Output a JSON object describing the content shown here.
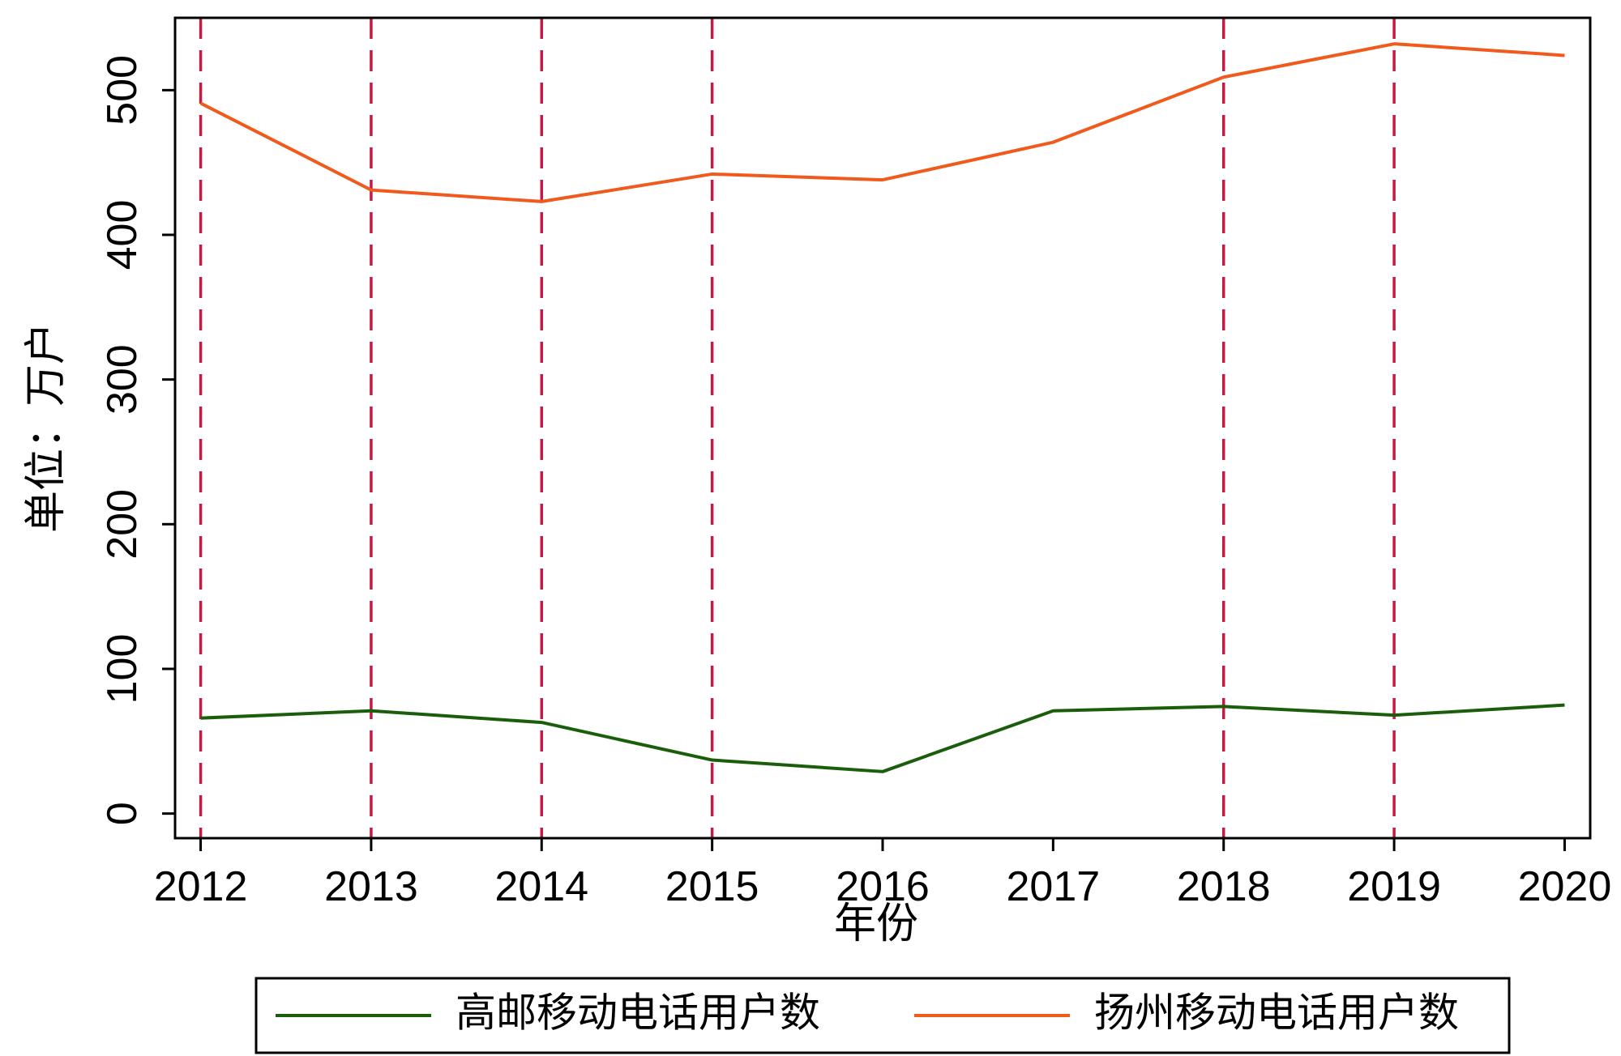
{
  "chart_data": {
    "type": "line",
    "title": "",
    "xlabel": "年份",
    "ylabel": "单位：万户",
    "x": [
      2012,
      2013,
      2014,
      2015,
      2016,
      2017,
      2018,
      2019,
      2020
    ],
    "xlim": [
      2011.85,
      2020.15
    ],
    "ylim": [
      -17,
      550
    ],
    "yticks": [
      0,
      100,
      200,
      300,
      400,
      500
    ],
    "grid": false,
    "legend_position": "bottom",
    "vertical_reference_lines": [
      2012,
      2013,
      2014,
      2015,
      2018,
      2019
    ],
    "series": [
      {
        "name": "高邮移动电话用户数",
        "color": "#1a5e0c",
        "values": [
          66,
          71,
          63,
          37,
          29,
          71,
          74,
          68,
          75
        ]
      },
      {
        "name": "扬州移动电话用户数",
        "color": "#f05a1c",
        "values": [
          491,
          431,
          423,
          442,
          438,
          464,
          509,
          532,
          524
        ]
      }
    ],
    "colors": {
      "reference_line": "#c41a44",
      "axis": "#000000",
      "background": "#ffffff"
    }
  }
}
